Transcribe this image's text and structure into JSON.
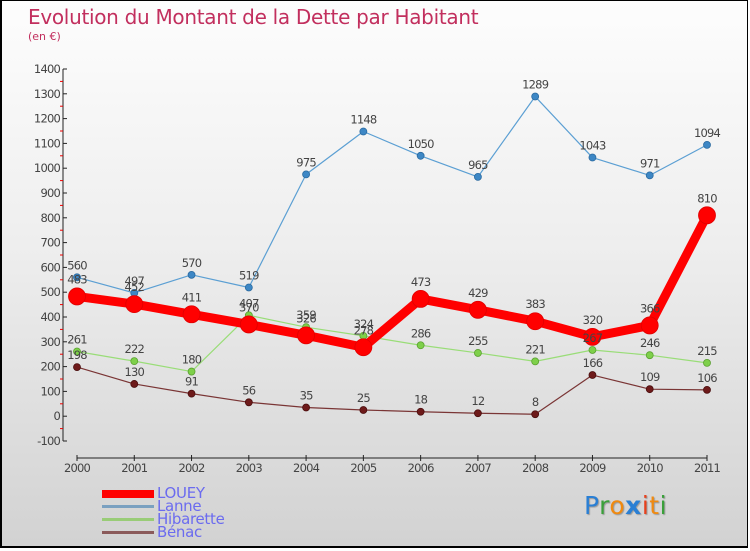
{
  "header": {
    "title": "Evolution du Montant de la Dette par Habitant",
    "subtitle": "(en €)"
  },
  "logo": {
    "letters": [
      {
        "char": "P",
        "color": "#2a7fd4"
      },
      {
        "char": "r",
        "color": "#3aa03a"
      },
      {
        "char": "o",
        "color": "#f08a10"
      },
      {
        "char": "x",
        "color": "#2a7fd4"
      },
      {
        "char": "i",
        "color": "#e8401c"
      },
      {
        "char": "t",
        "color": "#f08a10"
      },
      {
        "char": "i",
        "color": "#3aa03a"
      }
    ]
  },
  "chart_data": {
    "type": "line",
    "title": "Evolution du Montant de la Dette par Habitant",
    "subtitle": "(en €)",
    "xlabel": "",
    "ylabel": "",
    "x": [
      "2000",
      "2001",
      "2002",
      "2003",
      "2004",
      "2005",
      "2006",
      "2007",
      "2008",
      "2009",
      "2010",
      "2011"
    ],
    "ylim": [
      -100,
      1400
    ],
    "yticks": [
      -100,
      0,
      100,
      200,
      300,
      400,
      500,
      600,
      700,
      800,
      900,
      1000,
      1100,
      1200,
      1300,
      1400
    ],
    "grid": false,
    "legend_position": "bottom-left",
    "series": [
      {
        "name": "LOUEY",
        "color": "#ff0000",
        "values": [
          483,
          452,
          411,
          370,
          326,
          278,
          473,
          429,
          383,
          320,
          366,
          810
        ]
      },
      {
        "name": "Lanne",
        "color": "#3d87c5",
        "values": [
          560,
          497,
          570,
          519,
          975,
          1148,
          1050,
          965,
          1289,
          1043,
          971,
          1094
        ]
      },
      {
        "name": "Hibarette",
        "color": "#7ed04a",
        "values": [
          261,
          222,
          180,
          407,
          359,
          324,
          286,
          255,
          221,
          267,
          246,
          215
        ]
      },
      {
        "name": "Bénac",
        "color": "#6e1a1a",
        "values": [
          198,
          130,
          91,
          56,
          35,
          25,
          18,
          12,
          8,
          166,
          109,
          106
        ]
      }
    ]
  }
}
